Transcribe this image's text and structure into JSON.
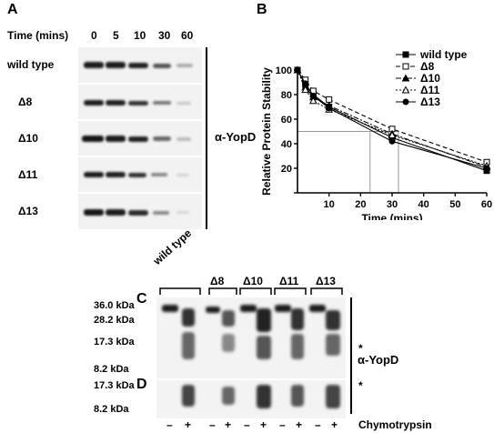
{
  "panelA": {
    "letter": "A",
    "time_label": "Time (mins)",
    "times": [
      "0",
      "5",
      "10",
      "30",
      "60"
    ],
    "rows": [
      "wild type",
      "Δ8",
      "Δ10",
      "Δ11",
      "Δ13"
    ],
    "antibody": "α-YopD"
  },
  "panelB": {
    "letter": "B"
  },
  "chart_data": {
    "type": "line",
    "xlabel": "Time (mins)",
    "ylabel": "Relative Protein Stability",
    "xlim": [
      0,
      60
    ],
    "ylim": [
      0,
      100
    ],
    "xticks": [
      10,
      20,
      30,
      40,
      50,
      60
    ],
    "yticks": [
      0,
      20,
      40,
      60,
      80,
      100
    ],
    "x": [
      0,
      2.5,
      5,
      10,
      30,
      60
    ],
    "series": [
      {
        "name": "wild type",
        "marker": "filled-square",
        "line": "solid",
        "values": [
          100,
          88,
          80,
          70,
          45,
          18
        ]
      },
      {
        "name": "Δ8",
        "marker": "open-square",
        "line": "dashed",
        "values": [
          100,
          92,
          83,
          76,
          52,
          25
        ]
      },
      {
        "name": "Δ10",
        "marker": "filled-triangle",
        "line": "dash-dot",
        "values": [
          100,
          86,
          78,
          71,
          48,
          21
        ]
      },
      {
        "name": "Δ11",
        "marker": "open-triangle",
        "line": "dotted",
        "values": [
          100,
          84,
          75,
          68,
          47,
          22
        ]
      },
      {
        "name": "Δ13",
        "marker": "filled-circle",
        "line": "solid",
        "values": [
          100,
          89,
          79,
          69,
          42,
          20
        ]
      }
    ],
    "reference_lines": {
      "half_life_y": 50,
      "x_marks": [
        23,
        32
      ]
    },
    "legend_position": "top-right"
  },
  "panelC": {
    "letter": "C",
    "markers": [
      "36.0 kDa",
      "28.2 kDa",
      "17.3 kDa",
      "8.2 kDa"
    ],
    "groups": [
      "wild type",
      "Δ8",
      "Δ10",
      "Δ11",
      "Δ13"
    ],
    "antibody": "α-YopD",
    "asterisk": "*"
  },
  "panelD": {
    "letter": "D",
    "markers": [
      "17.3 kDa",
      "8.2 kDa"
    ],
    "asterisk": "*",
    "lane_signs": [
      "–",
      "+",
      "–",
      "+",
      "–",
      "+",
      "–",
      "+",
      "–",
      "+"
    ],
    "treatment": "Chymotrypsin"
  }
}
